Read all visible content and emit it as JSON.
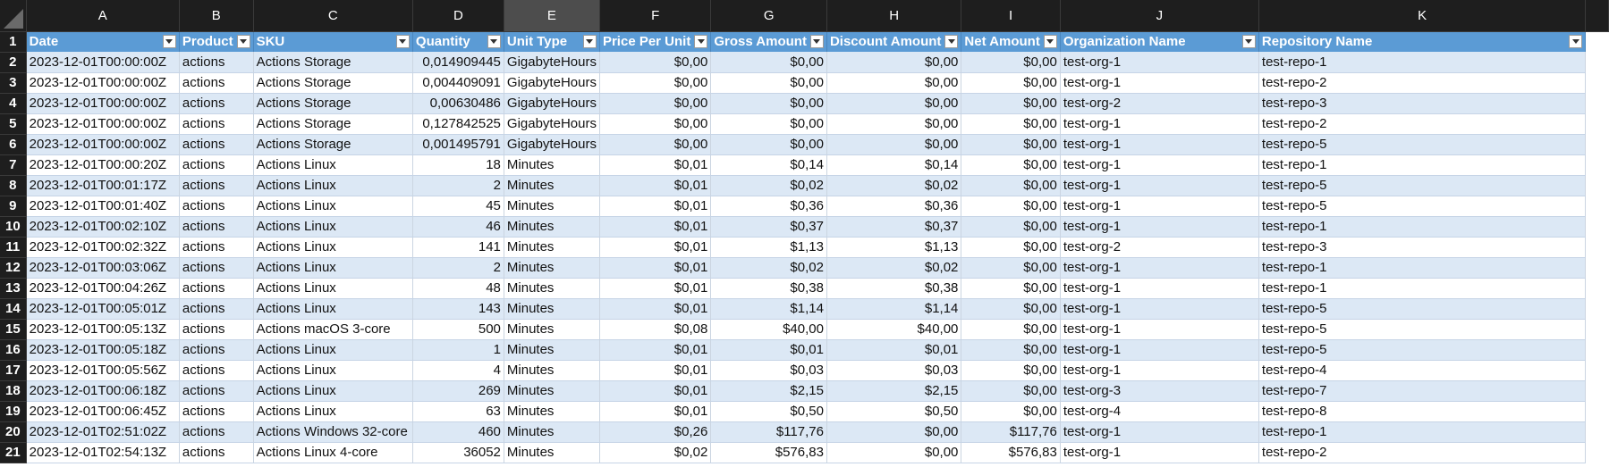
{
  "sheet": {
    "column_letters": [
      "A",
      "B",
      "C",
      "D",
      "E",
      "F",
      "G",
      "H",
      "I",
      "J",
      "K"
    ],
    "selected_column": "E",
    "headers": [
      "Date",
      "Product",
      "SKU",
      "Quantity",
      "Unit Type",
      "Price Per Unit",
      "Gross Amount",
      "Discount Amount",
      "Net Amount",
      "Organization Name",
      "Repository Name"
    ],
    "header_row_number": "1",
    "rows": [
      {
        "n": "2",
        "cells": [
          "2023-12-01T00:00:00Z",
          "actions",
          "Actions Storage",
          "0,014909445",
          "GigabyteHours",
          "$0,00",
          "$0,00",
          "$0,00",
          "$0,00",
          "test-org-1",
          "test-repo-1"
        ]
      },
      {
        "n": "3",
        "cells": [
          "2023-12-01T00:00:00Z",
          "actions",
          "Actions Storage",
          "0,004409091",
          "GigabyteHours",
          "$0,00",
          "$0,00",
          "$0,00",
          "$0,00",
          "test-org-1",
          "test-repo-2"
        ]
      },
      {
        "n": "4",
        "cells": [
          "2023-12-01T00:00:00Z",
          "actions",
          "Actions Storage",
          "0,00630486",
          "GigabyteHours",
          "$0,00",
          "$0,00",
          "$0,00",
          "$0,00",
          "test-org-2",
          "test-repo-3"
        ]
      },
      {
        "n": "5",
        "cells": [
          "2023-12-01T00:00:00Z",
          "actions",
          "Actions Storage",
          "0,127842525",
          "GigabyteHours",
          "$0,00",
          "$0,00",
          "$0,00",
          "$0,00",
          "test-org-1",
          "test-repo-2"
        ]
      },
      {
        "n": "6",
        "cells": [
          "2023-12-01T00:00:00Z",
          "actions",
          "Actions Storage",
          "0,001495791",
          "GigabyteHours",
          "$0,00",
          "$0,00",
          "$0,00",
          "$0,00",
          "test-org-1",
          "test-repo-5"
        ]
      },
      {
        "n": "7",
        "cells": [
          "2023-12-01T00:00:20Z",
          "actions",
          "Actions Linux",
          "18",
          "Minutes",
          "$0,01",
          "$0,14",
          "$0,14",
          "$0,00",
          "test-org-1",
          "test-repo-1"
        ]
      },
      {
        "n": "8",
        "cells": [
          "2023-12-01T00:01:17Z",
          "actions",
          "Actions Linux",
          "2",
          "Minutes",
          "$0,01",
          "$0,02",
          "$0,02",
          "$0,00",
          "test-org-1",
          "test-repo-5"
        ]
      },
      {
        "n": "9",
        "cells": [
          "2023-12-01T00:01:40Z",
          "actions",
          "Actions Linux",
          "45",
          "Minutes",
          "$0,01",
          "$0,36",
          "$0,36",
          "$0,00",
          "test-org-1",
          "test-repo-5"
        ]
      },
      {
        "n": "10",
        "cells": [
          "2023-12-01T00:02:10Z",
          "actions",
          "Actions Linux",
          "46",
          "Minutes",
          "$0,01",
          "$0,37",
          "$0,37",
          "$0,00",
          "test-org-1",
          "test-repo-1"
        ]
      },
      {
        "n": "11",
        "cells": [
          "2023-12-01T00:02:32Z",
          "actions",
          "Actions Linux",
          "141",
          "Minutes",
          "$0,01",
          "$1,13",
          "$1,13",
          "$0,00",
          "test-org-2",
          "test-repo-3"
        ]
      },
      {
        "n": "12",
        "cells": [
          "2023-12-01T00:03:06Z",
          "actions",
          "Actions Linux",
          "2",
          "Minutes",
          "$0,01",
          "$0,02",
          "$0,02",
          "$0,00",
          "test-org-1",
          "test-repo-1"
        ]
      },
      {
        "n": "13",
        "cells": [
          "2023-12-01T00:04:26Z",
          "actions",
          "Actions Linux",
          "48",
          "Minutes",
          "$0,01",
          "$0,38",
          "$0,38",
          "$0,00",
          "test-org-1",
          "test-repo-1"
        ]
      },
      {
        "n": "14",
        "cells": [
          "2023-12-01T00:05:01Z",
          "actions",
          "Actions Linux",
          "143",
          "Minutes",
          "$0,01",
          "$1,14",
          "$1,14",
          "$0,00",
          "test-org-1",
          "test-repo-5"
        ]
      },
      {
        "n": "15",
        "cells": [
          "2023-12-01T00:05:13Z",
          "actions",
          "Actions macOS 3-core",
          "500",
          "Minutes",
          "$0,08",
          "$40,00",
          "$40,00",
          "$0,00",
          "test-org-1",
          "test-repo-5"
        ]
      },
      {
        "n": "16",
        "cells": [
          "2023-12-01T00:05:18Z",
          "actions",
          "Actions Linux",
          "1",
          "Minutes",
          "$0,01",
          "$0,01",
          "$0,01",
          "$0,00",
          "test-org-1",
          "test-repo-5"
        ]
      },
      {
        "n": "17",
        "cells": [
          "2023-12-01T00:05:56Z",
          "actions",
          "Actions Linux",
          "4",
          "Minutes",
          "$0,01",
          "$0,03",
          "$0,03",
          "$0,00",
          "test-org-1",
          "test-repo-4"
        ]
      },
      {
        "n": "18",
        "cells": [
          "2023-12-01T00:06:18Z",
          "actions",
          "Actions Linux",
          "269",
          "Minutes",
          "$0,01",
          "$2,15",
          "$2,15",
          "$0,00",
          "test-org-3",
          "test-repo-7"
        ]
      },
      {
        "n": "19",
        "cells": [
          "2023-12-01T00:06:45Z",
          "actions",
          "Actions Linux",
          "63",
          "Minutes",
          "$0,01",
          "$0,50",
          "$0,50",
          "$0,00",
          "test-org-4",
          "test-repo-8"
        ]
      },
      {
        "n": "20",
        "cells": [
          "2023-12-01T02:51:02Z",
          "actions",
          "Actions Windows 32-core",
          "460",
          "Minutes",
          "$0,26",
          "$117,76",
          "$0,00",
          "$117,76",
          "test-org-1",
          "test-repo-1"
        ]
      },
      {
        "n": "21",
        "cells": [
          "2023-12-01T02:54:13Z",
          "actions",
          "Actions Linux 4-core",
          "36052",
          "Minutes",
          "$0,02",
          "$576,83",
          "$0,00",
          "$576,83",
          "test-org-1",
          "test-repo-2"
        ]
      }
    ]
  },
  "colors": {
    "header_bg": "#5b9bd5",
    "band_bg": "#dce8f5",
    "chrome_bg": "#1e1e1e"
  }
}
